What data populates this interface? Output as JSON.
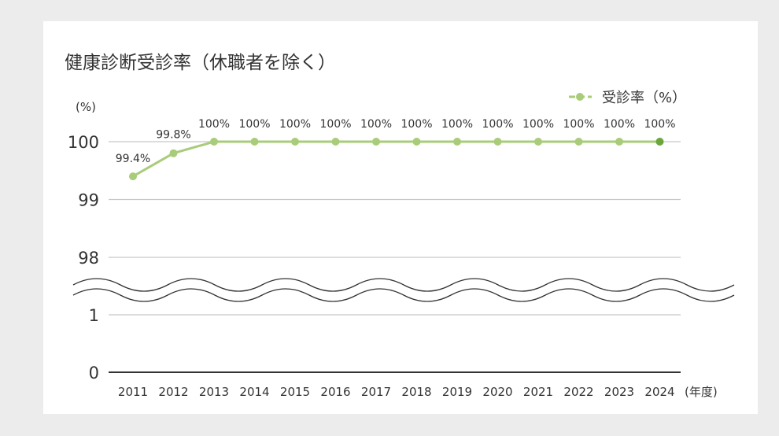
{
  "chart_data": {
    "type": "line",
    "title": "健康診断受診率（休職者を除く）",
    "ylabel": "(%)",
    "xlabel": "(年度)",
    "x": [
      "2011",
      "2012",
      "2013",
      "2014",
      "2015",
      "2016",
      "2017",
      "2018",
      "2019",
      "2020",
      "2021",
      "2022",
      "2023",
      "2024"
    ],
    "series": [
      {
        "name": "受診率（%）",
        "values": [
          99.4,
          99.8,
          100,
          100,
          100,
          100,
          100,
          100,
          100,
          100,
          100,
          100,
          100,
          100
        ],
        "labels": [
          "99.4%",
          "99.8%",
          "100%",
          "100%",
          "100%",
          "100%",
          "100%",
          "100%",
          "100%",
          "100%",
          "100%",
          "100%",
          "100%",
          "100%"
        ]
      }
    ],
    "yticks": [
      "100",
      "99",
      "98",
      "1",
      "0"
    ],
    "axis_break": "between 1 and 98",
    "grid": true,
    "legend": "top-right",
    "colors": {
      "line": "#a9cc7a",
      "highlight_point": "#6aa63a",
      "grid": "#c8c8c8",
      "axis": "#333333"
    }
  }
}
